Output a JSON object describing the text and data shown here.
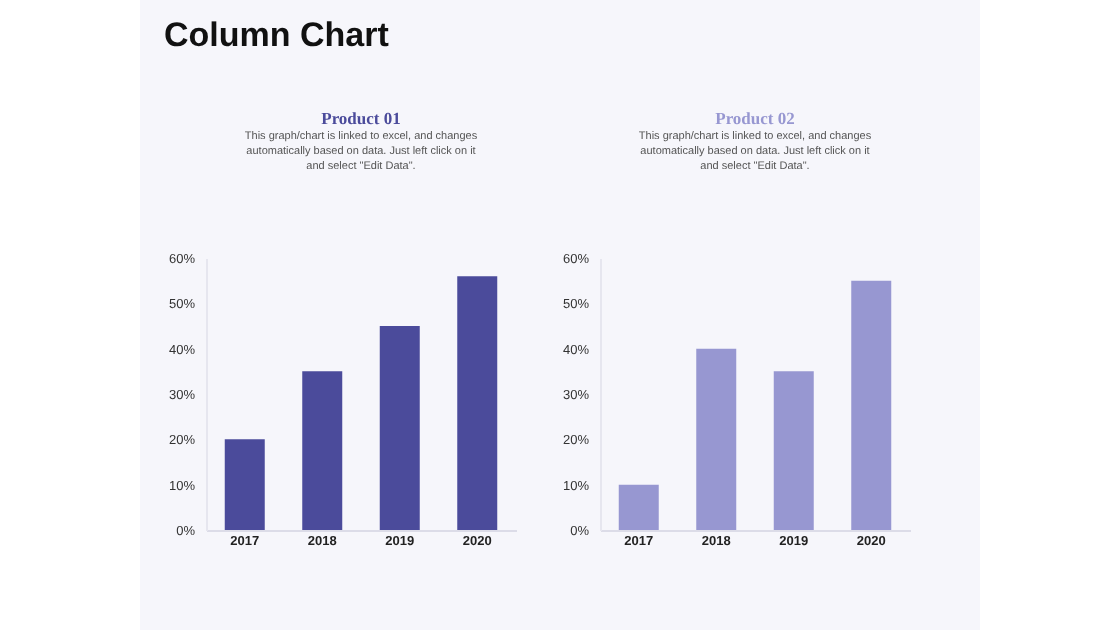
{
  "chart_data": [
    {
      "type": "bar",
      "title": "Product 01",
      "subtitle": "This graph/chart is linked to excel, and changes automatically based on data. Just left click on it and select \"Edit Data\".",
      "annotations": [
        "Column Chart"
      ],
      "categories": [
        "2017",
        "2018",
        "2019",
        "2020"
      ],
      "values": [
        20,
        35,
        45,
        56
      ],
      "color": "#4b4b9b",
      "ylim": [
        0,
        60
      ],
      "yticks": [
        {
          "value": 0,
          "label": "0%"
        },
        {
          "value": 10,
          "label": "10%"
        },
        {
          "value": 20,
          "label": "20%"
        },
        {
          "value": 30,
          "label": "30%"
        },
        {
          "value": 40,
          "label": "40%"
        },
        {
          "value": 50,
          "label": "50%"
        },
        {
          "value": 60,
          "label": "60%"
        }
      ],
      "grid": false
    },
    {
      "type": "bar",
      "title": "Product 02",
      "subtitle": "This graph/chart is linked to excel, and changes automatically based on data. Just left click on it and select \"Edit Data\".",
      "categories": [
        "2017",
        "2018",
        "2019",
        "2020"
      ],
      "values": [
        10,
        40,
        35,
        55
      ],
      "color": "#9797d1",
      "ylim": [
        0,
        60
      ],
      "yticks": [
        {
          "value": 0,
          "label": "0%"
        },
        {
          "value": 10,
          "label": "10%"
        },
        {
          "value": 20,
          "label": "20%"
        },
        {
          "value": 30,
          "label": "30%"
        },
        {
          "value": 40,
          "label": "40%"
        },
        {
          "value": 50,
          "label": "50%"
        },
        {
          "value": 60,
          "label": "60%"
        }
      ],
      "grid": false
    }
  ]
}
